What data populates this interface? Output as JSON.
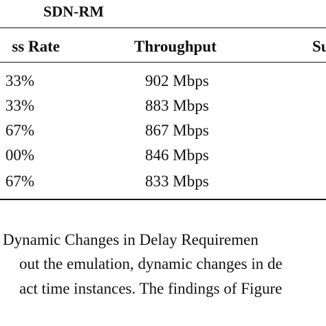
{
  "table": {
    "group_title": "SDN-RM",
    "header": [
      "ss Rate",
      "Throughput",
      "Su"
    ],
    "rows": [
      [
        "33%",
        "902 Mbps"
      ],
      [
        "33%",
        "883 Mbps"
      ],
      [
        "67%",
        "867 Mbps"
      ],
      [
        "00%",
        "846 Mbps"
      ],
      [
        "67%",
        "833 Mbps"
      ]
    ]
  },
  "section": {
    "heading": "Dynamic Changes in Delay Requiremen",
    "lines": [
      "out the emulation, dynamic changes in de",
      "act time instances. The findings of Figure"
    ]
  }
}
